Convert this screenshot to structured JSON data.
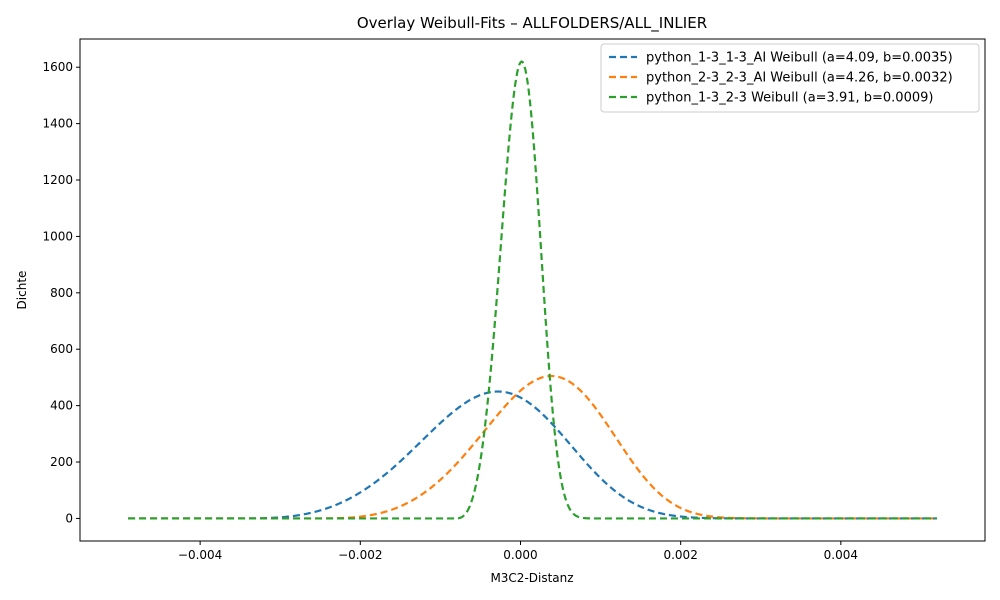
{
  "chart_data": {
    "type": "line",
    "title": "Overlay Weibull-Fits – ALLFOLDERS/ALL_INLIER",
    "xlabel": "M3C2-Distanz",
    "ylabel": "Dichte",
    "xlim": [
      -0.0055,
      0.0058
    ],
    "ylim": [
      -80,
      1700
    ],
    "xticks": [
      -0.004,
      -0.002,
      0.0,
      0.002,
      0.004
    ],
    "xtick_labels": [
      "−0.004",
      "−0.002",
      "0.000",
      "0.002",
      "0.004"
    ],
    "yticks": [
      0,
      200,
      400,
      600,
      800,
      1000,
      1200,
      1400,
      1600
    ],
    "ytick_labels": [
      "0",
      "200",
      "400",
      "600",
      "800",
      "1000",
      "1200",
      "1400",
      "1600"
    ],
    "legend_position": "top-right",
    "grid": false,
    "line_style": "dashed",
    "series": [
      {
        "name": "python_1-3_1-3_AI Weibull (a=4.09, b=0.0035)",
        "color": "#1f77b4",
        "shape": 4.09,
        "scale": 0.0035,
        "loc": -0.00355,
        "x_range": [
          -0.0049,
          0.0052
        ],
        "peak_x": -0.0004,
        "peak_y": 450
      },
      {
        "name": "python_2-3_2-3_AI Weibull (a=4.26, b=0.0032)",
        "color": "#ff7f0e",
        "shape": 4.26,
        "scale": 0.0032,
        "loc": -0.00262,
        "x_range": [
          -0.0049,
          0.0052
        ],
        "peak_x": 0.00045,
        "peak_y": 505
      },
      {
        "name": "python_1-3_2-3 Weibull (a=3.91, b=0.0009)",
        "color": "#2ca02c",
        "shape": 3.91,
        "scale": 0.0009,
        "loc": -0.00082,
        "x_range": [
          -0.0049,
          0.0052
        ],
        "peak_x": 3e-05,
        "peak_y": 1620
      }
    ]
  }
}
